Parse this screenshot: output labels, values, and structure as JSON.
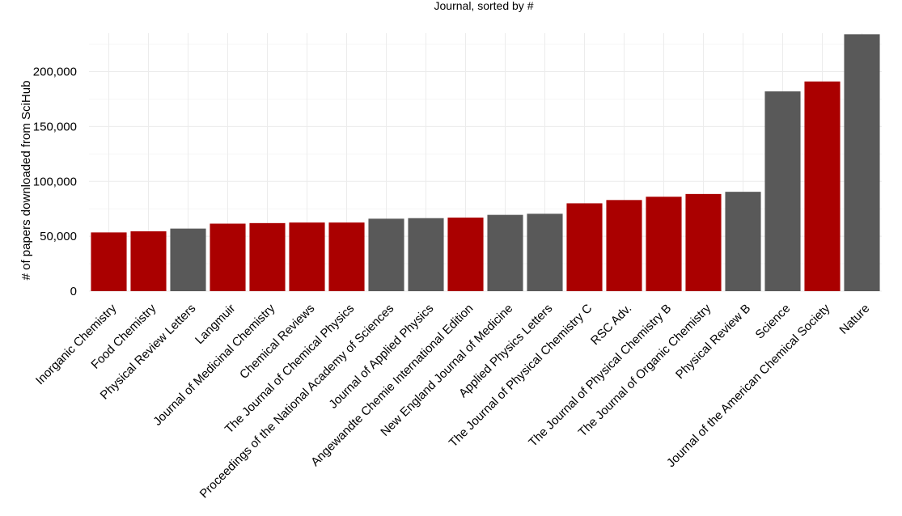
{
  "chart_data": {
    "type": "bar",
    "title": "Journal, sorted by #",
    "xlabel": "",
    "ylabel": "# of papers downloaded from SciHub",
    "ylim": [
      0,
      235000
    ],
    "yticks": [
      0,
      50000,
      100000,
      150000,
      200000
    ],
    "ytick_labels": [
      "0",
      "50,000",
      "100,000",
      "150,000",
      "200,000"
    ],
    "grid": true,
    "legend": "none",
    "colors": {
      "highlight": "#aa0000",
      "default": "#595959"
    },
    "categories": [
      "Inorganic Chemistry",
      "Food Chemistry",
      "Physical Review Letters",
      "Langmuir",
      "Journal of Medicinal Chemistry",
      "Chemical Reviews",
      "The Journal of Chemical Physics",
      "Proceedings of the National Academy of Sciences",
      "Journal of Applied Physics",
      "Angewandte Chemie International Edition",
      "New England Journal of Medicine",
      "Applied Physics Letters",
      "The Journal of Physical Chemistry C",
      "RSC Adv.",
      "The Journal of Physical Chemistry B",
      "The Journal of Organic Chemistry",
      "Physical Review B",
      "Science",
      "Journal of the American Chemical Society",
      "Nature"
    ],
    "values": [
      53500,
      54500,
      57000,
      61500,
      62000,
      62500,
      62500,
      66000,
      66500,
      67000,
      69500,
      70500,
      80000,
      83000,
      86000,
      88500,
      90500,
      182000,
      191000,
      234000
    ],
    "highlighted": [
      true,
      true,
      false,
      true,
      true,
      true,
      true,
      false,
      false,
      true,
      false,
      false,
      true,
      true,
      true,
      true,
      false,
      false,
      true,
      false
    ]
  }
}
